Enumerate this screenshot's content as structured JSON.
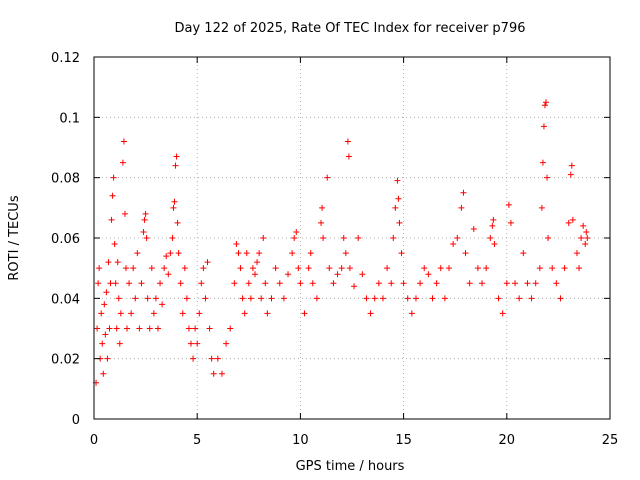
{
  "chart_data": {
    "type": "scatter",
    "title": "Day 122 of 2025, Rate Of TEC Index for receiver p796",
    "xlabel": "GPS time / hours",
    "ylabel": "ROTI / TECUs",
    "xlim": [
      0,
      25
    ],
    "ylim": [
      0,
      0.12
    ],
    "xticks": [
      0,
      5,
      10,
      15,
      20,
      25
    ],
    "xtick_labels": [
      "0",
      "5",
      "10",
      "15",
      "20",
      "25"
    ],
    "yticks": [
      0,
      0.02,
      0.04,
      0.06,
      0.08,
      0.1,
      0.12
    ],
    "ytick_labels": [
      "0",
      "0.02",
      "0.04",
      "0.06",
      "0.08",
      "0.1",
      "0.12"
    ],
    "grid": true,
    "marker": "+",
    "series_color": "#ff0000",
    "series": [
      {
        "name": "ROTI",
        "points": [
          [
            0.1,
            0.012
          ],
          [
            0.15,
            0.03
          ],
          [
            0.2,
            0.045
          ],
          [
            0.25,
            0.05
          ],
          [
            0.3,
            0.02
          ],
          [
            0.35,
            0.035
          ],
          [
            0.4,
            0.025
          ],
          [
            0.45,
            0.015
          ],
          [
            0.5,
            0.038
          ],
          [
            0.55,
            0.028
          ],
          [
            0.6,
            0.042
          ],
          [
            0.65,
            0.02
          ],
          [
            0.7,
            0.052
          ],
          [
            0.75,
            0.03
          ],
          [
            0.8,
            0.045
          ],
          [
            0.85,
            0.066
          ],
          [
            0.9,
            0.074
          ],
          [
            0.95,
            0.08
          ],
          [
            1.0,
            0.058
          ],
          [
            1.05,
            0.045
          ],
          [
            1.1,
            0.03
          ],
          [
            1.15,
            0.052
          ],
          [
            1.2,
            0.04
          ],
          [
            1.25,
            0.025
          ],
          [
            1.3,
            0.035
          ],
          [
            1.4,
            0.085
          ],
          [
            1.45,
            0.092
          ],
          [
            1.5,
            0.068
          ],
          [
            1.55,
            0.05
          ],
          [
            1.6,
            0.03
          ],
          [
            1.7,
            0.045
          ],
          [
            1.8,
            0.035
          ],
          [
            1.9,
            0.05
          ],
          [
            2.0,
            0.04
          ],
          [
            2.1,
            0.055
          ],
          [
            2.2,
            0.03
          ],
          [
            2.3,
            0.045
          ],
          [
            2.4,
            0.062
          ],
          [
            2.45,
            0.066
          ],
          [
            2.5,
            0.068
          ],
          [
            2.55,
            0.06
          ],
          [
            2.6,
            0.04
          ],
          [
            2.7,
            0.03
          ],
          [
            2.8,
            0.05
          ],
          [
            2.9,
            0.035
          ],
          [
            3.0,
            0.04
          ],
          [
            3.1,
            0.03
          ],
          [
            3.2,
            0.045
          ],
          [
            3.3,
            0.038
          ],
          [
            3.4,
            0.05
          ],
          [
            3.5,
            0.054
          ],
          [
            3.6,
            0.048
          ],
          [
            3.7,
            0.055
          ],
          [
            3.8,
            0.06
          ],
          [
            3.85,
            0.07
          ],
          [
            3.9,
            0.072
          ],
          [
            3.95,
            0.084
          ],
          [
            4.0,
            0.087
          ],
          [
            4.05,
            0.065
          ],
          [
            4.1,
            0.055
          ],
          [
            4.2,
            0.045
          ],
          [
            4.3,
            0.035
          ],
          [
            4.4,
            0.05
          ],
          [
            4.5,
            0.04
          ],
          [
            4.6,
            0.03
          ],
          [
            4.7,
            0.025
          ],
          [
            4.8,
            0.02
          ],
          [
            4.9,
            0.03
          ],
          [
            5.0,
            0.025
          ],
          [
            5.1,
            0.035
          ],
          [
            5.2,
            0.045
          ],
          [
            5.3,
            0.05
          ],
          [
            5.4,
            0.04
          ],
          [
            5.5,
            0.052
          ],
          [
            5.6,
            0.03
          ],
          [
            5.7,
            0.02
          ],
          [
            5.8,
            0.015
          ],
          [
            6.0,
            0.02
          ],
          [
            6.2,
            0.015
          ],
          [
            6.4,
            0.025
          ],
          [
            6.6,
            0.03
          ],
          [
            6.8,
            0.045
          ],
          [
            6.9,
            0.058
          ],
          [
            7.0,
            0.055
          ],
          [
            7.1,
            0.05
          ],
          [
            7.2,
            0.04
          ],
          [
            7.3,
            0.035
          ],
          [
            7.4,
            0.055
          ],
          [
            7.5,
            0.045
          ],
          [
            7.6,
            0.04
          ],
          [
            7.7,
            0.05
          ],
          [
            7.8,
            0.048
          ],
          [
            7.9,
            0.052
          ],
          [
            8.0,
            0.055
          ],
          [
            8.1,
            0.04
          ],
          [
            8.2,
            0.06
          ],
          [
            8.3,
            0.045
          ],
          [
            8.4,
            0.035
          ],
          [
            8.6,
            0.04
          ],
          [
            8.8,
            0.05
          ],
          [
            9.0,
            0.045
          ],
          [
            9.2,
            0.04
          ],
          [
            9.4,
            0.048
          ],
          [
            9.6,
            0.055
          ],
          [
            9.7,
            0.06
          ],
          [
            9.8,
            0.062
          ],
          [
            9.9,
            0.05
          ],
          [
            10.0,
            0.045
          ],
          [
            10.2,
            0.035
          ],
          [
            10.4,
            0.05
          ],
          [
            10.5,
            0.055
          ],
          [
            10.6,
            0.045
          ],
          [
            10.8,
            0.04
          ],
          [
            11.0,
            0.065
          ],
          [
            11.05,
            0.07
          ],
          [
            11.1,
            0.06
          ],
          [
            11.3,
            0.08
          ],
          [
            11.4,
            0.05
          ],
          [
            11.6,
            0.045
          ],
          [
            11.8,
            0.048
          ],
          [
            12.0,
            0.05
          ],
          [
            12.1,
            0.06
          ],
          [
            12.2,
            0.055
          ],
          [
            12.3,
            0.092
          ],
          [
            12.35,
            0.087
          ],
          [
            12.4,
            0.05
          ],
          [
            12.6,
            0.044
          ],
          [
            12.8,
            0.06
          ],
          [
            13.0,
            0.048
          ],
          [
            13.2,
            0.04
          ],
          [
            13.4,
            0.035
          ],
          [
            13.6,
            0.04
          ],
          [
            13.8,
            0.045
          ],
          [
            14.0,
            0.04
          ],
          [
            14.2,
            0.05
          ],
          [
            14.4,
            0.045
          ],
          [
            14.5,
            0.06
          ],
          [
            14.6,
            0.07
          ],
          [
            14.7,
            0.079
          ],
          [
            14.75,
            0.073
          ],
          [
            14.8,
            0.065
          ],
          [
            14.9,
            0.055
          ],
          [
            15.0,
            0.045
          ],
          [
            15.2,
            0.04
          ],
          [
            15.4,
            0.035
          ],
          [
            15.6,
            0.04
          ],
          [
            15.8,
            0.045
          ],
          [
            16.0,
            0.05
          ],
          [
            16.2,
            0.048
          ],
          [
            16.4,
            0.04
          ],
          [
            16.6,
            0.045
          ],
          [
            16.8,
            0.05
          ],
          [
            17.0,
            0.04
          ],
          [
            17.2,
            0.05
          ],
          [
            17.4,
            0.058
          ],
          [
            17.6,
            0.06
          ],
          [
            17.8,
            0.07
          ],
          [
            17.9,
            0.075
          ],
          [
            18.0,
            0.055
          ],
          [
            18.2,
            0.045
          ],
          [
            18.4,
            0.063
          ],
          [
            18.6,
            0.05
          ],
          [
            18.8,
            0.045
          ],
          [
            19.0,
            0.05
          ],
          [
            19.2,
            0.06
          ],
          [
            19.3,
            0.064
          ],
          [
            19.35,
            0.066
          ],
          [
            19.4,
            0.058
          ],
          [
            19.6,
            0.04
          ],
          [
            19.8,
            0.035
          ],
          [
            20.0,
            0.045
          ],
          [
            20.1,
            0.071
          ],
          [
            20.2,
            0.065
          ],
          [
            20.4,
            0.045
          ],
          [
            20.6,
            0.04
          ],
          [
            20.8,
            0.055
          ],
          [
            21.0,
            0.045
          ],
          [
            21.2,
            0.04
          ],
          [
            21.4,
            0.045
          ],
          [
            21.6,
            0.05
          ],
          [
            21.7,
            0.07
          ],
          [
            21.75,
            0.085
          ],
          [
            21.8,
            0.097
          ],
          [
            21.85,
            0.104
          ],
          [
            21.9,
            0.105
          ],
          [
            21.95,
            0.08
          ],
          [
            22.0,
            0.06
          ],
          [
            22.2,
            0.05
          ],
          [
            22.4,
            0.045
          ],
          [
            22.6,
            0.04
          ],
          [
            22.8,
            0.05
          ],
          [
            23.0,
            0.065
          ],
          [
            23.1,
            0.081
          ],
          [
            23.15,
            0.084
          ],
          [
            23.2,
            0.066
          ],
          [
            23.4,
            0.055
          ],
          [
            23.5,
            0.05
          ],
          [
            23.6,
            0.06
          ],
          [
            23.7,
            0.064
          ],
          [
            23.8,
            0.058
          ],
          [
            23.85,
            0.062
          ],
          [
            23.9,
            0.06
          ]
        ]
      }
    ]
  }
}
